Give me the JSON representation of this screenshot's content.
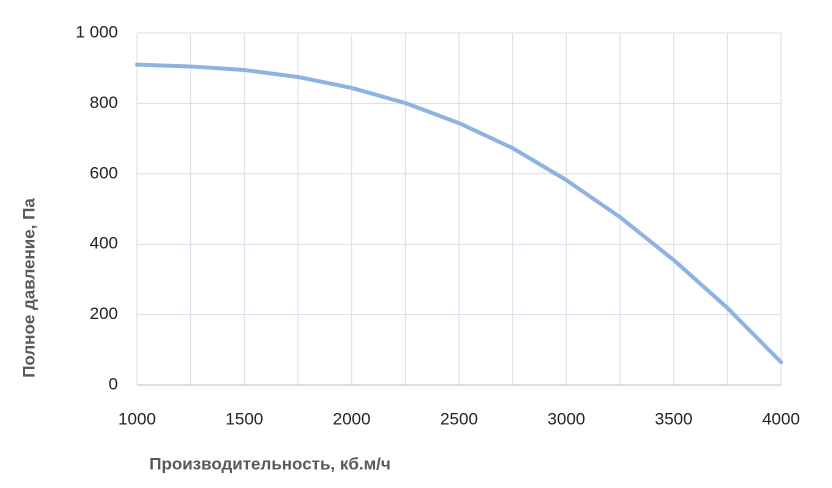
{
  "chart_data": {
    "type": "line",
    "x_label": "Производительность, кб.м/ч",
    "y_label": "Полное  давление, Па",
    "x": [
      1000,
      1250,
      1500,
      1750,
      2000,
      2250,
      2500,
      2750,
      3000,
      3250,
      3500,
      3750,
      4000
    ],
    "series": [
      {
        "name": "Полное давление",
        "color": "#8db3e2",
        "values": [
          910,
          905,
          895,
          875,
          844,
          801,
          744,
          673,
          582,
          477,
          355,
          219,
          65
        ]
      }
    ],
    "xlim": [
      1000,
      4000
    ],
    "xticks": [
      1000,
      1500,
      2000,
      2500,
      3000,
      3500,
      4000
    ],
    "xminor_ticks": [
      1250,
      1750,
      2250,
      2750,
      3250,
      3750
    ],
    "ylim": [
      0,
      1000
    ],
    "yticks": [
      0,
      200,
      400,
      600,
      800,
      {
        "value": 1000,
        "label": "1 000"
      }
    ],
    "grid": true
  }
}
